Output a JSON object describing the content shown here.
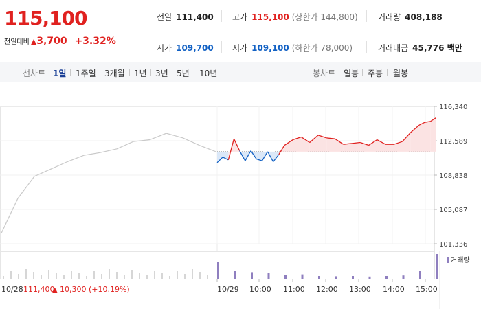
{
  "quote": {
    "price": "115,100",
    "change_label": "전일대비",
    "change_arrow": "▲",
    "change_value": "3,700",
    "change_pct": "+3.32%"
  },
  "stats": {
    "prev_close": {
      "label": "전일",
      "value": "111,400"
    },
    "high": {
      "label": "고가",
      "value": "115,100",
      "sub": "(상한가 144,800)"
    },
    "volume": {
      "label": "거래량",
      "value": "408,188"
    },
    "open": {
      "label": "시가",
      "value": "109,700"
    },
    "low": {
      "label": "저가",
      "value": "109,100",
      "sub": "(하한가 78,000)"
    },
    "amount": {
      "label": "거래대금",
      "value": "45,776 백만"
    }
  },
  "tabs": {
    "line_label": "선차트",
    "line_tabs": [
      "1일",
      "1주일",
      "3개월",
      "1년",
      "3년",
      "5년",
      "10년"
    ],
    "candle_label": "봉차트",
    "candle_tabs": [
      "일봉",
      "주봉",
      "월봉"
    ]
  },
  "colors": {
    "up": "#e0211f",
    "down": "#1261c4",
    "prev_day": "#c9c9c9",
    "volume": "#8f7fbf"
  },
  "chart_data": {
    "type": "line",
    "ylim": [
      101336,
      116340
    ],
    "y_ticks": [
      "116,340",
      "112,589",
      "108,838",
      "105,087",
      "101,336"
    ],
    "reference_price": 111400,
    "x_ticks": [
      "10/29",
      "10:00",
      "11:00",
      "12:00",
      "13:00",
      "14:00",
      "15:00"
    ],
    "prev_day_label": "10/28",
    "prev_day_close": "111,400",
    "prev_day_change_arrow": "▲",
    "prev_day_change": "10,300 (+10.19%)",
    "volume_legend": "거래량",
    "series": [
      {
        "x": [
          "10/28 09:00",
          "10/28 09:30",
          "10/28 10:00",
          "10/28 10:30",
          "10/28 11:00",
          "10/28 11:30",
          "10/28 12:00",
          "10/28 12:30",
          "10/28 13:00",
          "10/28 13:30",
          "10/28 14:00",
          "10/28 14:30",
          "10/28 15:00",
          "10/28 15:30"
        ],
        "values": [
          102500,
          106300,
          108700,
          109500,
          110300,
          111000,
          111300,
          111700,
          112500,
          112700,
          113400,
          112900,
          112100,
          111400
        ]
      },
      {
        "x": [
          "09:00",
          "09:10",
          "09:20",
          "09:30",
          "09:40",
          "09:50",
          "10:00",
          "10:10",
          "10:20",
          "10:30",
          "10:40",
          "10:50",
          "11:00",
          "11:15",
          "11:30",
          "11:45",
          "12:00",
          "12:15",
          "12:30",
          "12:45",
          "13:00",
          "13:15",
          "13:30",
          "13:45",
          "14:00",
          "14:15",
          "14:30",
          "14:45",
          "15:00",
          "15:10",
          "15:20",
          "15:30"
        ],
        "values": [
          110200,
          110800,
          110500,
          112800,
          111500,
          110400,
          111500,
          110600,
          110400,
          111400,
          110300,
          111100,
          112100,
          112700,
          113000,
          112400,
          113200,
          112900,
          112800,
          112200,
          112300,
          112400,
          112100,
          112700,
          112200,
          112200,
          112500,
          113500,
          114300,
          114600,
          114700,
          115100
        ]
      }
    ],
    "volume": {
      "x": [
        "09:00",
        "09:30",
        "10:00",
        "10:30",
        "11:00",
        "11:30",
        "12:00",
        "12:30",
        "13:00",
        "13:30",
        "14:00",
        "14:30",
        "15:00",
        "15:30"
      ],
      "values": [
        62,
        30,
        24,
        20,
        14,
        16,
        10,
        9,
        10,
        8,
        10,
        12,
        30,
        90
      ]
    }
  }
}
